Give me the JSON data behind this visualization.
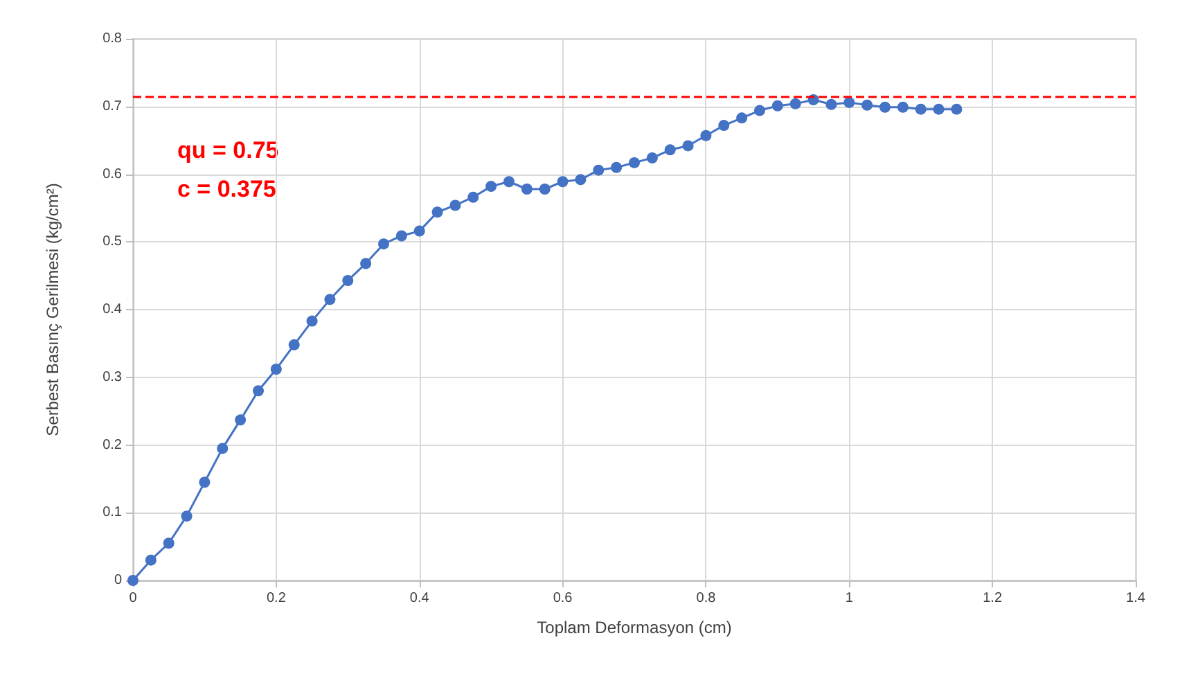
{
  "chart_data": {
    "type": "line",
    "xlabel": "Toplam Deformasyon (cm)",
    "ylabel": "Serbest Basınç Gerilmesi (kg/cm²)",
    "x": [
      0,
      0.025,
      0.05,
      0.075,
      0.1,
      0.125,
      0.15,
      0.175,
      0.2,
      0.225,
      0.25,
      0.275,
      0.3,
      0.325,
      0.35,
      0.375,
      0.4,
      0.425,
      0.45,
      0.475,
      0.5,
      0.525,
      0.55,
      0.575,
      0.6,
      0.625,
      0.65,
      0.675,
      0.7,
      0.725,
      0.75,
      0.775,
      0.8,
      0.825,
      0.85,
      0.875,
      0.9,
      0.925,
      0.95,
      0.975,
      1.0,
      1.025,
      1.05,
      1.075,
      1.1,
      1.125,
      1.15
    ],
    "series": [
      {
        "color": "#4472c4",
        "values": [
          0,
          0.03,
          0.055,
          0.095,
          0.145,
          0.195,
          0.237,
          0.28,
          0.312,
          0.348,
          0.383,
          0.415,
          0.443,
          0.468,
          0.497,
          0.509,
          0.516,
          0.544,
          0.554,
          0.566,
          0.582,
          0.589,
          0.578,
          0.578,
          0.589,
          0.592,
          0.606,
          0.61,
          0.617,
          0.624,
          0.636,
          0.642,
          0.657,
          0.672,
          0.683,
          0.694,
          0.701,
          0.704,
          0.71,
          0.703,
          0.706,
          0.702,
          0.699,
          0.699,
          0.696,
          0.696,
          0.696
        ]
      }
    ],
    "xlim": [
      0,
      1.4
    ],
    "xticks": [
      0,
      0.2,
      0.4,
      0.6,
      0.8,
      1,
      1.2,
      1.4
    ],
    "ylim": [
      0,
      0.8
    ],
    "yticks": [
      0,
      0.1,
      0.2,
      0.3,
      0.4,
      0.5,
      0.6,
      0.7,
      0.8
    ],
    "ref_lines": [
      {
        "axis": "y",
        "value": 0.715,
        "color": "#ff0000",
        "line_style": "dashed"
      }
    ],
    "annotations": [
      "qu = 0.75",
      "c = 0.375"
    ],
    "grid": true,
    "marker": "circle",
    "line_style": "solid"
  }
}
